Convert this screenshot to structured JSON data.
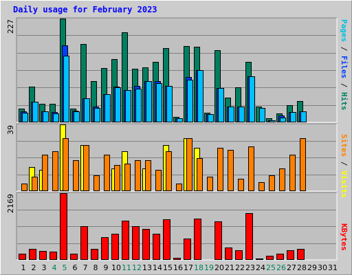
{
  "title": "Daily usage for February 2023",
  "panels": {
    "top": {
      "max_label": "227",
      "legend": [
        {
          "text": "Pages",
          "color": "#00c0e0"
        },
        {
          "text": " / ",
          "color": "#202020"
        },
        {
          "text": "Files",
          "color": "#0040ff"
        },
        {
          "text": " / ",
          "color": "#202020"
        },
        {
          "text": "Hits",
          "color": "#008060"
        }
      ]
    },
    "middle": {
      "max_label": "39",
      "legend": [
        {
          "text": "Sites",
          "color": "#ff8000"
        },
        {
          "text": " / ",
          "color": "#202020"
        },
        {
          "text": "Visits",
          "color": "#ffff00"
        }
      ]
    },
    "bottom": {
      "max_label": "2169",
      "legend": [
        {
          "text": "KBytes",
          "color": "#ff0000"
        }
      ]
    }
  },
  "x_labels": [
    {
      "text": "1",
      "weekend": false
    },
    {
      "text": "2",
      "weekend": false
    },
    {
      "text": "3",
      "weekend": false
    },
    {
      "text": "4",
      "weekend": true
    },
    {
      "text": "5",
      "weekend": true
    },
    {
      "text": "6",
      "weekend": false
    },
    {
      "text": "7",
      "weekend": false
    },
    {
      "text": "8",
      "weekend": false
    },
    {
      "text": "9",
      "weekend": false
    },
    {
      "text": "10",
      "weekend": false
    },
    {
      "text": "11",
      "weekend": true
    },
    {
      "text": "12",
      "weekend": true
    },
    {
      "text": "13",
      "weekend": false
    },
    {
      "text": "14",
      "weekend": false
    },
    {
      "text": "15",
      "weekend": false
    },
    {
      "text": "16",
      "weekend": false
    },
    {
      "text": "17",
      "weekend": false
    },
    {
      "text": "18",
      "weekend": true
    },
    {
      "text": "19",
      "weekend": true
    },
    {
      "text": "20",
      "weekend": false
    },
    {
      "text": "21",
      "weekend": false
    },
    {
      "text": "22",
      "weekend": false
    },
    {
      "text": "23",
      "weekend": false
    },
    {
      "text": "24",
      "weekend": false
    },
    {
      "text": "25",
      "weekend": true
    },
    {
      "text": "26",
      "weekend": true
    },
    {
      "text": "27",
      "weekend": false
    },
    {
      "text": "28",
      "weekend": false
    },
    {
      "text": "29",
      "weekend": false
    },
    {
      "text": "30",
      "weekend": false
    },
    {
      "text": "31",
      "weekend": false
    }
  ],
  "colors": {
    "hits": "#008060",
    "files": "#0040ff",
    "pages": "#00c0ff",
    "visits": "#ffff00",
    "sites": "#ff8000",
    "kbytes": "#ff0000",
    "weekday_label": "#000000",
    "weekend_label": "#00805c"
  },
  "chart_data": {
    "type": "bar",
    "categories": [
      "1",
      "2",
      "3",
      "4",
      "5",
      "6",
      "7",
      "8",
      "9",
      "10",
      "11",
      "12",
      "13",
      "14",
      "15",
      "16",
      "17",
      "18",
      "19",
      "20",
      "21",
      "22",
      "23",
      "24",
      "25",
      "26",
      "27",
      "28",
      "29",
      "30",
      "31"
    ],
    "series": [
      {
        "name": "Hits",
        "values": [
          28,
          77,
          39,
          40,
          227,
          29,
          171,
          90,
          118,
          137,
          197,
          117,
          119,
          132,
          162,
          11,
          167,
          165,
          20,
          157,
          53,
          76,
          131,
          34,
          8,
          18,
          36,
          45,
          0,
          0,
          0
        ]
      },
      {
        "name": "Files",
        "values": [
          22,
          44,
          23,
          21,
          168,
          24,
          52,
          33,
          61,
          77,
          69,
          78,
          90,
          89,
          79,
          8,
          99,
          114,
          17,
          74,
          34,
          33,
          100,
          0,
          3,
          14,
          21,
          23,
          0,
          0,
          0
        ]
      },
      {
        "name": "Pages",
        "values": [
          20,
          44,
          22,
          18,
          145,
          22,
          52,
          31,
          61,
          75,
          69,
          72,
          90,
          85,
          79,
          8,
          92,
          114,
          17,
          74,
          34,
          33,
          100,
          31,
          3,
          9,
          21,
          23,
          0,
          0,
          0
        ]
      },
      {
        "name": "Visits",
        "values": [
          0,
          14,
          12,
          0,
          39,
          0,
          27,
          0,
          0,
          13,
          23,
          0,
          13,
          0,
          27,
          0,
          31,
          25,
          0,
          0,
          0,
          0,
          0,
          0,
          0,
          0,
          0,
          0,
          0,
          0,
          0
        ]
      },
      {
        "name": "Sites",
        "values": [
          4,
          8,
          21,
          23,
          31,
          18,
          27,
          9,
          21,
          15,
          16,
          18,
          18,
          12,
          23,
          4,
          31,
          19,
          8,
          25,
          24,
          7,
          26,
          5,
          9,
          13,
          21,
          31,
          0,
          0,
          0
        ]
      },
      {
        "name": "KBytes",
        "values": [
          190,
          340,
          280,
          250,
          2169,
          180,
          1090,
          350,
          720,
          830,
          1260,
          1080,
          990,
          830,
          1310,
          35,
          670,
          1330,
          10,
          1250,
          380,
          300,
          1510,
          20,
          120,
          170,
          300,
          350,
          0,
          0,
          0
        ]
      }
    ]
  }
}
